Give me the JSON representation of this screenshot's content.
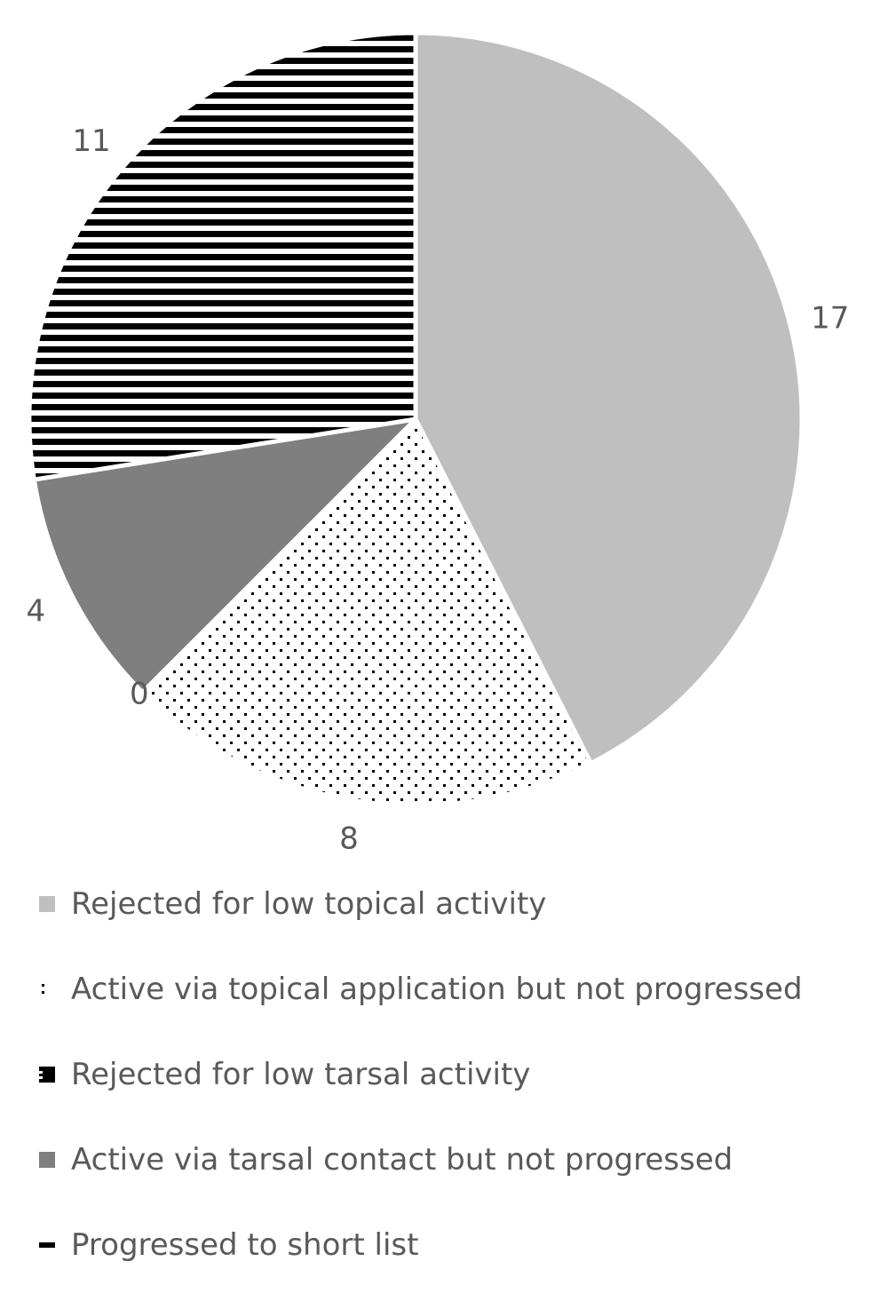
{
  "chart_data": {
    "type": "pie",
    "title": "",
    "start_angle_deg": 0,
    "direction": "clockwise",
    "slices": [
      {
        "label": "Rejected for low topical activity",
        "value": 17,
        "fill": "#bfbfbf",
        "pattern": "solid",
        "data_label": "17"
      },
      {
        "label": "Active via topical application but not progressed",
        "value": 8,
        "fill": "#ffffff",
        "pattern": "dots",
        "data_label": "8"
      },
      {
        "label": "Rejected for low tarsal activity",
        "value": 0,
        "fill": "#000000",
        "pattern": "stripes",
        "data_label": "0"
      },
      {
        "label": "Active via tarsal contact but not progressed",
        "value": 4,
        "fill": "#7f7f7f",
        "pattern": "solid",
        "data_label": "4"
      },
      {
        "label": "Progressed to short list",
        "value": 11,
        "fill": "#000000",
        "pattern": "stripes",
        "data_label": "11"
      }
    ],
    "legend_position": "bottom"
  },
  "legend": {
    "items": [
      {
        "label": "Rejected for low topical activity"
      },
      {
        "label": "Active via topical application but not progressed"
      },
      {
        "label": "Rejected for low tarsal activity"
      },
      {
        "label": "Active via tarsal contact but not progressed"
      },
      {
        "label": "Progressed to short list"
      }
    ]
  }
}
